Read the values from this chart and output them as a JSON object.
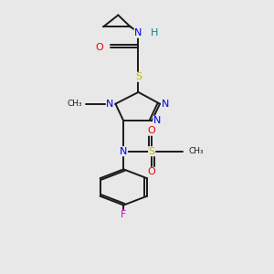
{
  "background_color": "#e8e8e8",
  "figsize": [
    3.0,
    3.0
  ],
  "dpi": 100,
  "colors": {
    "C": "#1a1a1a",
    "N": "#0000ee",
    "O": "#ee0000",
    "S": "#bbbb00",
    "F": "#dd00dd",
    "H": "#008888",
    "bond": "#1a1a1a"
  },
  "lw": 1.4
}
